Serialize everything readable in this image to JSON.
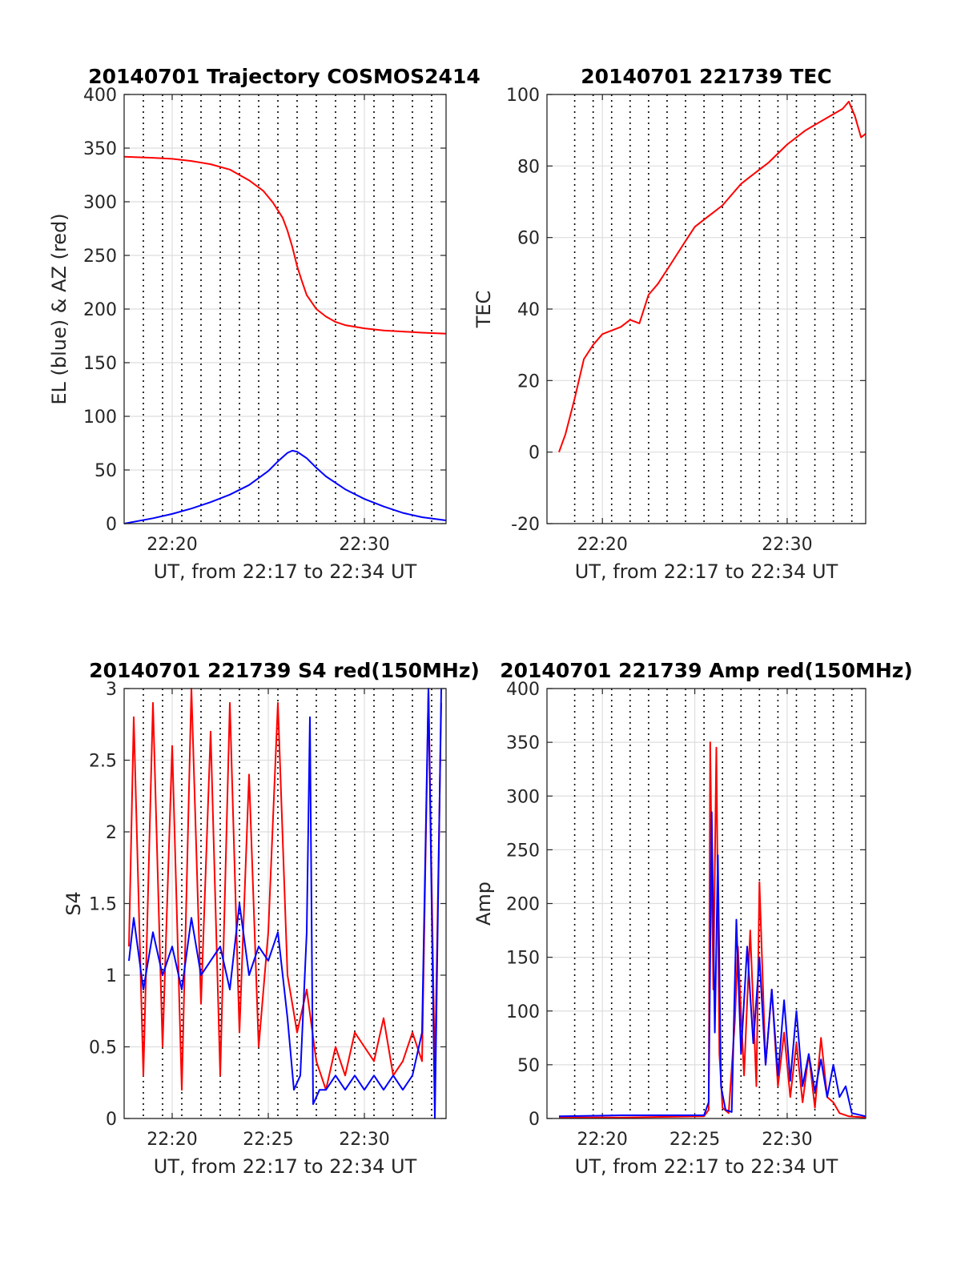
{
  "chart_data": [
    {
      "type": "line",
      "title": "20140701 Trajectory COSMOS2414",
      "xlabel": "UT, from 22:17 to 22:34 UT",
      "ylabel": "EL (blue) & AZ (red)",
      "xlim": [
        "22:17:30",
        "22:34:15"
      ],
      "ylim": [
        0,
        400
      ],
      "xticks": [
        "22:20",
        "22:30"
      ],
      "yticks": [
        "0",
        "50",
        "100",
        "150",
        "200",
        "250",
        "300",
        "350",
        "400"
      ],
      "grid": true,
      "vertical_dotted_markers": [
        "22:18:30",
        "22:19:30",
        "22:20:30",
        "22:21:30",
        "22:22:30",
        "22:23:30",
        "22:24:30",
        "22:25:30",
        "22:26:30",
        "22:27:30",
        "22:28:30",
        "22:29:30",
        "22:30:30",
        "22:31:30",
        "22:32:30",
        "22:33:30"
      ],
      "series": [
        {
          "name": "AZ",
          "color": "#ff0000",
          "x": [
            "22:17:30",
            "22:19:00",
            "22:20:00",
            "22:21:00",
            "22:22:00",
            "22:23:00",
            "22:24:00",
            "22:24:45",
            "22:25:15",
            "22:25:45",
            "22:26:00",
            "22:26:15",
            "22:26:30",
            "22:26:45",
            "22:27:00",
            "22:27:30",
            "22:28:00",
            "22:28:30",
            "22:29:00",
            "22:30:00",
            "22:31:00",
            "22:32:00",
            "22:33:00",
            "22:34:15"
          ],
          "values": [
            342,
            341,
            340,
            338,
            335,
            330,
            320,
            310,
            299,
            285,
            273,
            258,
            240,
            226,
            213,
            200,
            193,
            188,
            185,
            182,
            180,
            179,
            178,
            177
          ]
        },
        {
          "name": "EL",
          "color": "#0000ff",
          "x": [
            "22:17:30",
            "22:19:00",
            "22:20:00",
            "22:21:00",
            "22:22:00",
            "22:23:00",
            "22:24:00",
            "22:25:00",
            "22:25:30",
            "22:26:00",
            "22:26:15",
            "22:26:30",
            "22:27:00",
            "22:27:30",
            "22:28:00",
            "22:29:00",
            "22:30:00",
            "22:31:00",
            "22:32:00",
            "22:33:00",
            "22:34:15"
          ],
          "values": [
            0,
            5,
            9,
            14,
            20,
            27,
            36,
            49,
            58,
            66,
            68,
            67,
            61,
            52,
            44,
            32,
            23,
            16,
            10,
            6,
            3
          ]
        }
      ]
    },
    {
      "type": "line",
      "title": "20140701 221739 TEC",
      "xlabel": "UT, from 22:17 to 22:34 UT",
      "ylabel": "TEC",
      "xlim": [
        "22:17:00",
        "22:34:15"
      ],
      "ylim": [
        -20,
        100
      ],
      "xticks": [
        "22:20",
        "22:30"
      ],
      "yticks": [
        "-20",
        "0",
        "20",
        "40",
        "60",
        "80",
        "100"
      ],
      "grid": true,
      "vertical_dotted_markers": [
        "22:18:30",
        "22:19:30",
        "22:20:30",
        "22:21:30",
        "22:22:30",
        "22:23:30",
        "22:24:30",
        "22:25:30",
        "22:26:30",
        "22:27:30",
        "22:28:30",
        "22:29:30",
        "22:30:30",
        "22:31:30",
        "22:32:30",
        "22:33:30"
      ],
      "series": [
        {
          "name": "TEC",
          "color": "#ff0000",
          "x": [
            "22:17:39",
            "22:18:00",
            "22:18:30",
            "22:19:00",
            "22:19:30",
            "22:20:00",
            "22:20:30",
            "22:21:00",
            "22:21:30",
            "22:22:00",
            "22:22:30",
            "22:23:00",
            "22:23:30",
            "22:24:00",
            "22:24:30",
            "22:25:00",
            "22:25:30",
            "22:26:00",
            "22:26:30",
            "22:27:00",
            "22:27:30",
            "22:28:00",
            "22:29:00",
            "22:30:00",
            "22:31:00",
            "22:32:00",
            "22:33:00",
            "22:33:20",
            "22:33:40",
            "22:34:00",
            "22:34:15"
          ],
          "values": [
            0,
            5,
            15,
            26,
            30,
            33,
            34,
            35,
            37,
            36,
            44,
            47,
            51,
            55,
            59,
            63,
            65,
            67,
            69,
            72,
            75,
            77,
            81,
            86,
            90,
            93,
            96,
            98,
            94,
            88,
            89
          ]
        }
      ]
    },
    {
      "type": "line",
      "title": "20140701 221739 S4 red(150MHz)",
      "xlabel": "UT, from 22:17 to 22:34 UT",
      "ylabel": "S4",
      "xlim": [
        "22:17:30",
        "22:34:15"
      ],
      "ylim": [
        0,
        3
      ],
      "xticks": [
        "22:20",
        "22:25",
        "22:30"
      ],
      "yticks": [
        "0",
        "0.5",
        "1",
        "1.5",
        "2",
        "2.5",
        "3"
      ],
      "grid": true,
      "vertical_dotted_markers": [
        "22:18:30",
        "22:19:30",
        "22:20:30",
        "22:21:30",
        "22:22:30",
        "22:23:30",
        "22:24:30",
        "22:25:30",
        "22:26:30",
        "22:27:30",
        "22:28:30",
        "22:29:30",
        "22:30:30",
        "22:31:30",
        "22:32:30",
        "22:33:30"
      ],
      "series": [
        {
          "color": "#ff0000",
          "x": [
            "22:17:45",
            "22:18:00",
            "22:18:30",
            "22:19:00",
            "22:19:30",
            "22:20:00",
            "22:20:30",
            "22:21:00",
            "22:21:30",
            "22:22:00",
            "22:22:30",
            "22:23:00",
            "22:23:30",
            "22:24:00",
            "22:24:30",
            "22:25:00",
            "22:25:30",
            "22:26:00",
            "22:26:30",
            "22:27:00",
            "22:27:30",
            "22:28:00",
            "22:28:30",
            "22:29:00",
            "22:29:30",
            "22:30:00",
            "22:30:30",
            "22:31:00",
            "22:31:30",
            "22:32:00",
            "22:32:30",
            "22:33:00",
            "22:33:20",
            "22:33:40",
            "22:34:00"
          ],
          "values": [
            1.2,
            2.8,
            0.3,
            2.9,
            0.5,
            2.6,
            0.2,
            3.0,
            0.8,
            2.7,
            0.3,
            2.9,
            0.6,
            2.4,
            0.5,
            1.3,
            2.9,
            1.0,
            0.6,
            0.9,
            0.4,
            0.2,
            0.5,
            0.3,
            0.6,
            0.5,
            0.4,
            0.7,
            0.3,
            0.4,
            0.6,
            0.4,
            3.0,
            0.3,
            2.9
          ]
        },
        {
          "color": "#0000ff",
          "x": [
            "22:17:45",
            "22:18:00",
            "22:18:30",
            "22:19:00",
            "22:19:30",
            "22:20:00",
            "22:20:30",
            "22:21:00",
            "22:21:30",
            "22:22:00",
            "22:22:30",
            "22:23:00",
            "22:23:30",
            "22:24:00",
            "22:24:30",
            "22:25:00",
            "22:25:30",
            "22:26:00",
            "22:26:20",
            "22:26:40",
            "22:27:00",
            "22:27:10",
            "22:27:20",
            "22:27:40",
            "22:28:00",
            "22:28:30",
            "22:29:00",
            "22:29:30",
            "22:30:00",
            "22:30:30",
            "22:31:00",
            "22:31:30",
            "22:32:00",
            "22:32:30",
            "22:33:00",
            "22:33:20",
            "22:33:40",
            "22:34:00"
          ],
          "values": [
            1.1,
            1.4,
            0.9,
            1.3,
            1.0,
            1.2,
            0.9,
            1.4,
            1.0,
            1.1,
            1.2,
            0.9,
            1.5,
            1.0,
            1.2,
            1.1,
            1.3,
            0.7,
            0.2,
            0.3,
            1.3,
            2.8,
            0.1,
            0.2,
            0.2,
            0.3,
            0.2,
            0.3,
            0.2,
            0.3,
            0.2,
            0.3,
            0.2,
            0.3,
            0.6,
            3.0,
            0.0,
            3.0
          ]
        }
      ]
    },
    {
      "type": "line",
      "title": "20140701 221739 Amp red(150MHz)",
      "xlabel": "UT, from 22:17 to 22:34 UT",
      "ylabel": "Amp",
      "xlim": [
        "22:17:00",
        "22:34:15"
      ],
      "ylim": [
        0,
        400
      ],
      "xticks": [
        "22:20",
        "22:25",
        "22:30"
      ],
      "yticks": [
        "0",
        "50",
        "100",
        "150",
        "200",
        "250",
        "300",
        "350",
        "400"
      ],
      "grid": true,
      "vertical_dotted_markers": [
        "22:18:30",
        "22:19:30",
        "22:20:30",
        "22:21:30",
        "22:22:30",
        "22:23:30",
        "22:24:30",
        "22:25:30",
        "22:26:30",
        "22:27:30",
        "22:28:30",
        "22:29:30",
        "22:30:30",
        "22:31:30",
        "22:32:30",
        "22:33:30"
      ],
      "series": [
        {
          "color": "#ff0000",
          "x": [
            "22:17:39",
            "22:21:00",
            "22:25:30",
            "22:25:45",
            "22:25:50",
            "22:26:00",
            "22:26:10",
            "22:26:20",
            "22:26:30",
            "22:26:50",
            "22:27:10",
            "22:27:20",
            "22:27:40",
            "22:28:00",
            "22:28:20",
            "22:28:30",
            "22:28:50",
            "22:29:10",
            "22:29:30",
            "22:29:50",
            "22:30:10",
            "22:30:30",
            "22:30:50",
            "22:31:10",
            "22:31:30",
            "22:31:50",
            "22:32:10",
            "22:32:30",
            "22:32:50",
            "22:33:20",
            "22:34:15"
          ],
          "values": [
            1,
            1,
            2,
            8,
            350,
            120,
            345,
            60,
            10,
            5,
            90,
            160,
            40,
            175,
            30,
            220,
            50,
            120,
            30,
            80,
            20,
            70,
            15,
            60,
            10,
            75,
            20,
            15,
            5,
            2,
            1
          ]
        },
        {
          "color": "#0000ff",
          "x": [
            "22:17:39",
            "22:21:00",
            "22:25:30",
            "22:25:45",
            "22:25:55",
            "22:26:05",
            "22:26:15",
            "22:26:25",
            "22:26:40",
            "22:27:00",
            "22:27:15",
            "22:27:30",
            "22:27:50",
            "22:28:10",
            "22:28:30",
            "22:28:50",
            "22:29:10",
            "22:29:30",
            "22:29:50",
            "22:30:10",
            "22:30:30",
            "22:30:50",
            "22:31:10",
            "22:31:30",
            "22:31:50",
            "22:32:10",
            "22:32:30",
            "22:32:50",
            "22:33:10",
            "22:33:30",
            "22:34:15"
          ],
          "values": [
            2,
            3,
            3,
            15,
            285,
            80,
            245,
            30,
            8,
            6,
            185,
            60,
            160,
            70,
            150,
            50,
            120,
            40,
            110,
            35,
            100,
            30,
            60,
            25,
            55,
            20,
            50,
            20,
            30,
            5,
            2
          ]
        }
      ]
    }
  ]
}
